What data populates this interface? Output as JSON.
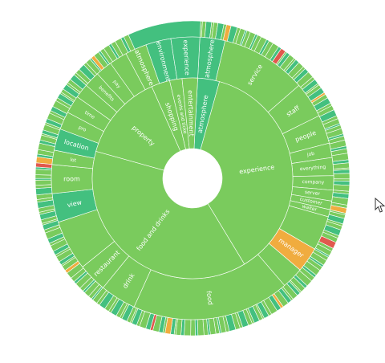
{
  "chart_data": {
    "type": "sunburst",
    "title": "",
    "colors": {
      "green": "#7acb5d",
      "teal": "#43c07f",
      "orange": "#f0ac3f",
      "red": "#e0594d",
      "stroke": "#ffffff"
    },
    "root_center": {
      "x": 240,
      "y": 222
    },
    "rings": [
      {
        "level": 1,
        "segments": [
          {
            "label": "atmosphere",
            "value": 3.5,
            "color": "teal"
          },
          {
            "label": "experience",
            "value": 37,
            "color": "green"
          },
          {
            "label": "food and drinks",
            "value": 38,
            "color": "green"
          },
          {
            "label": "property",
            "value": 14,
            "color": "green"
          },
          {
            "label": "shopping",
            "value": 3,
            "color": "green"
          },
          {
            "label": "events and ticke",
            "value": 2,
            "color": "green"
          },
          {
            "label": "entertainment",
            "value": 2.5,
            "color": "green"
          }
        ]
      },
      {
        "level": 2,
        "segments": [
          {
            "label": "atmosphere",
            "value": 3.5,
            "color": "teal"
          },
          {
            "label": "service",
            "value": 12,
            "color": "green"
          },
          {
            "label": "staff",
            "value": 5,
            "color": "green"
          },
          {
            "label": "people",
            "value": 4,
            "color": "green"
          },
          {
            "label": "job",
            "value": 2,
            "color": "green"
          },
          {
            "label": "everything",
            "value": 2.5,
            "color": "green"
          },
          {
            "label": "company",
            "value": 2,
            "color": "green"
          },
          {
            "label": "server",
            "value": 1.5,
            "color": "green"
          },
          {
            "label": "customer",
            "value": 1.2,
            "color": "green"
          },
          {
            "label": "waiter",
            "value": 1,
            "color": "green"
          },
          {
            "label": "",
            "value": 4.8,
            "color": "green"
          },
          {
            "label": "manager",
            "value": 3.5,
            "color": "orange"
          },
          {
            "label": "",
            "value": 3,
            "color": "green"
          },
          {
            "label": "food",
            "value": 22,
            "color": "green"
          },
          {
            "label": "drink",
            "value": 5,
            "color": "green"
          },
          {
            "label": "restaurant",
            "value": 4,
            "color": "green"
          },
          {
            "label": "",
            "value": 7,
            "color": "green"
          },
          {
            "label": "view",
            "value": 4,
            "color": "teal"
          },
          {
            "label": "room",
            "value": 4,
            "color": "green"
          },
          {
            "label": "lot",
            "value": 2,
            "color": "green"
          },
          {
            "label": "location",
            "value": 3,
            "color": "teal"
          },
          {
            "label": "pro",
            "value": 2.5,
            "color": "green"
          },
          {
            "label": "time",
            "value": 2.5,
            "color": "green"
          },
          {
            "label": "",
            "value": 2,
            "color": "green"
          },
          {
            "label": "benefits",
            "value": 2.2,
            "color": "green"
          },
          {
            "label": "pay",
            "value": 2.3,
            "color": "green"
          },
          {
            "label": "",
            "value": 2.5,
            "color": "green"
          },
          {
            "label": "atmosphere",
            "value": 3,
            "color": "green"
          },
          {
            "label": "environment",
            "value": 3.5,
            "color": "teal"
          },
          {
            "label": "experience",
            "value": 4,
            "color": "teal"
          }
        ]
      }
    ]
  }
}
